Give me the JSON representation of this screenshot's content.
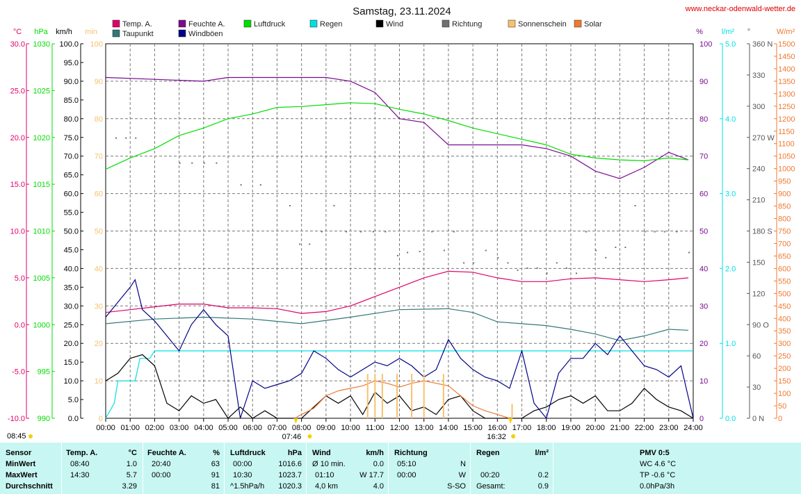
{
  "title": "Samstag, 23.11.2024",
  "website": "www.neckar-odenwald-wetter.de",
  "colors": {
    "temp": "#e0006a",
    "humidity": "#7a0a90",
    "pressure": "#00dd00",
    "rain": "#00e0e0",
    "wind": "#000000",
    "direction": "#707070",
    "sunshine": "#f7c16f",
    "solar": "#f07830",
    "dewpoint": "#337777",
    "gust": "#000088",
    "table_bg": "#c8f7f3"
  },
  "legend": [
    {
      "label": "Temp. A.",
      "color": "#e0006a"
    },
    {
      "label": "Feuchte A.",
      "color": "#7a0a90"
    },
    {
      "label": "Luftdruck",
      "color": "#00dd00"
    },
    {
      "label": "Regen",
      "color": "#00e0e0"
    },
    {
      "label": "Wind",
      "color": "#000000"
    },
    {
      "label": "Richtung",
      "color": "#707070"
    },
    {
      "label": "Sonnenschein",
      "color": "#f7c16f"
    },
    {
      "label": "Solar",
      "color": "#f07830"
    },
    {
      "label": "Taupunkt",
      "color": "#337777"
    },
    {
      "label": "Windböen",
      "color": "#000088"
    }
  ],
  "axes": {
    "temp": {
      "unit": "°C",
      "ticks": [
        "30.0",
        "25.0",
        "20.0",
        "15.0",
        "10.0",
        "5.0",
        "0.0",
        "-5.0",
        "-10.0"
      ]
    },
    "pressure": {
      "unit": "hPa",
      "ticks": [
        "1030",
        "1025",
        "1020",
        "1015",
        "1010",
        "1005",
        "1000",
        "995",
        "990"
      ]
    },
    "wind": {
      "unit": "km/h",
      "ticks": [
        "100.0",
        "95.0",
        "90.0",
        "85.0",
        "80.0",
        "75.0",
        "70.0",
        "65.0",
        "60.0",
        "55.0",
        "50.0",
        "45.0",
        "40.0",
        "35.0",
        "30.0",
        "25.0",
        "20.0",
        "15.0",
        "10.0",
        "5.0",
        "0.0"
      ]
    },
    "sunshine": {
      "unit": "min",
      "ticks": [
        "100",
        "90",
        "80",
        "70",
        "60",
        "50",
        "40",
        "30",
        "20",
        "10",
        "0"
      ]
    },
    "humidity": {
      "unit": "%",
      "ticks": [
        "100",
        "90",
        "80",
        "70",
        "60",
        "50",
        "40",
        "30",
        "20",
        "10",
        "0"
      ]
    },
    "rain": {
      "unit": "l/m²",
      "ticks": [
        "5.0",
        "4.0",
        "3.0",
        "2.0",
        "1.0",
        "0.0"
      ]
    },
    "direction": {
      "unit": "°",
      "ticks": [
        "360 N",
        "330",
        "300",
        "270 W",
        "240",
        "210",
        "180 S",
        "150",
        "120",
        "90 O",
        "60",
        "30",
        "0 N"
      ]
    },
    "solar": {
      "unit": "W/m²",
      "ticks": [
        "1500",
        "1450",
        "1400",
        "1350",
        "1300",
        "1250",
        "1200",
        "1150",
        "1100",
        "1050",
        "1000",
        "950",
        "900",
        "850",
        "800",
        "750",
        "700",
        "650",
        "600",
        "550",
        "500",
        "450",
        "400",
        "350",
        "300",
        "250",
        "200",
        "150",
        "100",
        "50",
        "0"
      ]
    },
    "time_ticks": [
      "00:00",
      "01:00",
      "02:00",
      "03:00",
      "04:00",
      "05:00",
      "06:00",
      "07:00",
      "08:00",
      "09:00",
      "10:00",
      "11:00",
      "12:00",
      "13:00",
      "14:00",
      "15:00",
      "16:00",
      "17:00",
      "18:00",
      "19:00",
      "20:00",
      "21:00",
      "22:00",
      "23:00",
      "24:00"
    ]
  },
  "sun": {
    "sunrise": "07:46",
    "sunset": "16:32",
    "sunshine_start": "08:45"
  },
  "chart_data": {
    "type": "line",
    "x_unit": "hours",
    "xlim": [
      0,
      24
    ],
    "series": [
      {
        "name": "Temp. A.",
        "unit": "°C",
        "x": [
          0,
          1,
          2,
          3,
          4,
          5,
          6,
          7,
          8,
          9,
          10,
          11,
          12,
          13,
          14,
          15,
          16,
          17,
          18,
          19,
          20,
          21,
          22,
          23,
          23.8
        ],
        "values": [
          1.3,
          1.6,
          1.9,
          2.2,
          2.2,
          1.8,
          1.8,
          1.7,
          1.2,
          1.4,
          2.0,
          3.0,
          4.0,
          5.0,
          5.7,
          5.6,
          5.0,
          4.6,
          4.6,
          4.9,
          5.0,
          4.8,
          4.6,
          4.8,
          5.0
        ]
      },
      {
        "name": "Taupunkt",
        "unit": "°C",
        "x": [
          0,
          2,
          4,
          6,
          8,
          10,
          12,
          14,
          15,
          16,
          17,
          18,
          19,
          20,
          21,
          22,
          23,
          23.8
        ],
        "values": [
          0.1,
          0.6,
          0.8,
          0.6,
          0.1,
          0.8,
          1.6,
          1.7,
          1.3,
          0.3,
          0.1,
          -0.1,
          -0.5,
          -1.0,
          -1.7,
          -1.2,
          -0.5,
          -0.6
        ]
      },
      {
        "name": "Feuchte A.",
        "unit": "%",
        "x": [
          0,
          4,
          5,
          9,
          10,
          11,
          12,
          13,
          14,
          15,
          16,
          17,
          18,
          19,
          20,
          21,
          22,
          23,
          23.8
        ],
        "values": [
          91,
          90,
          91,
          91,
          90,
          87,
          80,
          79,
          73,
          73,
          73,
          73,
          72,
          70,
          66,
          64,
          67,
          71,
          69
        ]
      },
      {
        "name": "Luftdruck",
        "unit": "hPa",
        "x": [
          0,
          1,
          2,
          3,
          4,
          5,
          6,
          7,
          8,
          9,
          10,
          11,
          12,
          13,
          14,
          15,
          16,
          17,
          18,
          19,
          20,
          21,
          22,
          23,
          23.8
        ],
        "values": [
          1016.6,
          1017.8,
          1018.8,
          1020.2,
          1021.0,
          1022.0,
          1022.5,
          1023.2,
          1023.3,
          1023.5,
          1023.7,
          1023.6,
          1023.0,
          1022.5,
          1021.8,
          1021.0,
          1020.4,
          1019.8,
          1019.2,
          1018.2,
          1017.8,
          1017.6,
          1017.5,
          1017.8,
          1017.6
        ]
      },
      {
        "name": "Regen",
        "unit": "l/m²",
        "x": [
          0,
          0.35,
          0.5,
          1.2,
          1.4,
          1.8,
          2.0,
          24
        ],
        "values": [
          0.0,
          0.2,
          0.5,
          0.5,
          0.8,
          0.8,
          0.9,
          0.9
        ]
      },
      {
        "name": "Wind",
        "unit": "km/h",
        "x": [
          0,
          0.5,
          1,
          1.5,
          2,
          2.5,
          3,
          3.5,
          4,
          4.5,
          5,
          5.5,
          6,
          6.5,
          7,
          7.5,
          8,
          8.5,
          9,
          9.5,
          10,
          10.5,
          11,
          11.5,
          12,
          12.5,
          13,
          13.5,
          14,
          14.5,
          15,
          15.5,
          16,
          16.5,
          17,
          17.5,
          18,
          18.5,
          19,
          19.5,
          20,
          20.5,
          21,
          21.5,
          22,
          22.5,
          23,
          23.5,
          24
        ],
        "values": [
          10,
          12,
          16,
          17,
          14,
          4,
          2,
          6,
          4,
          5,
          0,
          3,
          0,
          2,
          0,
          0,
          0,
          3,
          6,
          4,
          6,
          1,
          7,
          4,
          6,
          2,
          3,
          1,
          5,
          6,
          2,
          0,
          0,
          0,
          0,
          2,
          3,
          5,
          6,
          4,
          6,
          2,
          2,
          4,
          8,
          5,
          3,
          2,
          0
        ]
      },
      {
        "name": "Windböen",
        "unit": "km/h",
        "x": [
          0,
          0.5,
          1,
          1.2,
          1.5,
          2,
          2.5,
          3,
          3.5,
          4,
          4.5,
          5,
          5.5,
          6,
          6.5,
          7,
          7.5,
          8,
          8.5,
          9,
          9.5,
          10,
          10.5,
          11,
          11.5,
          12,
          12.5,
          13,
          13.5,
          14,
          14.5,
          15,
          15.5,
          16,
          16.5,
          17,
          17.5,
          18,
          18.5,
          19,
          19.5,
          20,
          20.5,
          21,
          21.5,
          22,
          22.5,
          23,
          23.5,
          24
        ],
        "values": [
          27,
          31,
          35,
          37,
          29,
          26,
          22,
          18,
          25,
          29,
          25,
          22,
          0,
          10,
          8,
          9,
          10,
          12,
          18,
          16,
          13,
          11,
          13,
          15,
          14,
          16,
          14,
          11,
          13,
          21,
          16,
          13,
          11,
          10,
          8,
          18,
          4,
          0,
          12,
          16,
          16,
          20,
          17,
          22,
          18,
          14,
          13,
          11,
          14,
          0
        ]
      },
      {
        "name": "Solar",
        "unit": "W/m²",
        "x": [
          7.8,
          8.5,
          9,
          9.5,
          10,
          10.5,
          11,
          11.5,
          12,
          12.5,
          13,
          13.5,
          14,
          14.5,
          15,
          15.5,
          16,
          16.5
        ],
        "values": [
          5,
          40,
          90,
          110,
          120,
          130,
          150,
          140,
          125,
          140,
          150,
          140,
          130,
          90,
          50,
          30,
          15,
          0
        ]
      },
      {
        "name": "Sonnenschein",
        "unit": "min",
        "x": [
          10.7,
          11.0,
          11.3,
          11.9,
          12.5,
          13.0,
          13.8,
          16.6
        ],
        "values": [
          10,
          10,
          10,
          10,
          10,
          10,
          10,
          2
        ]
      }
    ],
    "direction_points": {
      "unit": "°",
      "x": [
        0.4,
        0.8,
        1.2,
        3.0,
        3.5,
        4.0,
        4.5,
        5.5,
        6.3,
        7.5,
        7.9,
        8.3,
        8.8,
        9.3,
        9.8,
        10.4,
        10.9,
        11.4,
        11.9,
        12.3,
        12.8,
        13.3,
        13.8,
        14.2,
        14.6,
        15.0,
        15.5,
        16.0,
        16.4,
        16.8,
        17.2,
        17.6,
        18.0,
        18.4,
        18.8,
        19.2,
        19.6,
        20.0,
        20.4,
        20.8,
        21.2,
        21.6,
        22.0,
        22.4,
        22.8,
        23.3,
        23.8
      ],
      "values": [
        270,
        270,
        270,
        246,
        246,
        246,
        246,
        225,
        225,
        205,
        168,
        168,
        180,
        205,
        180,
        180,
        180,
        180,
        157,
        160,
        161,
        180,
        162,
        180,
        150,
        150,
        162,
        155,
        150,
        143,
        145,
        145,
        140,
        150,
        145,
        140,
        180,
        162,
        155,
        165,
        165,
        205,
        180,
        180,
        180,
        180,
        160
      ]
    },
    "annotations": [
      "08:45",
      "07:46",
      "16:32"
    ]
  },
  "summary_table": {
    "sensor": {
      "header": "Sensor",
      "rows": [
        "MinWert",
        "MaxWert",
        "Durchschnitt"
      ]
    },
    "temp": {
      "header": "Temp. A.",
      "unit": "°C",
      "times": [
        "08:40",
        "14:30",
        ""
      ],
      "values": [
        "1.0",
        "5.7",
        "3.29"
      ]
    },
    "humidity": {
      "header": "Feuchte A.",
      "unit": "%",
      "times": [
        "20:40",
        "00:00",
        ""
      ],
      "values": [
        "63",
        "91",
        "81"
      ]
    },
    "pressure": {
      "header": "Luftdruck",
      "unit": "hPa",
      "times": [
        "00:00",
        "10:30",
        "^1.5hPa/h"
      ],
      "values": [
        "1016.6",
        "1023.7",
        "1020.3"
      ]
    },
    "wind": {
      "header": "Wind",
      "unit": "km/h",
      "labels": [
        "Ø 10 min.",
        "01:10",
        "4,0 km"
      ],
      "values": [
        "0.0",
        "W 17.7",
        "4.0"
      ]
    },
    "direction": {
      "header": "Richtung",
      "times": [
        "05:10",
        "00:00",
        ""
      ],
      "values": [
        "N",
        "W",
        "S-SO"
      ]
    },
    "rain": {
      "header": "Regen",
      "unit": "l/m²",
      "labels": [
        "",
        "00:20",
        "Gesamt:"
      ],
      "values": [
        "",
        "0.2",
        "0.9"
      ]
    },
    "pmv": {
      "header": "PMV 0:5",
      "rows": [
        "WC 4.6 °C",
        "TP -0.6 °C",
        "0.0hPa/3h"
      ]
    }
  }
}
